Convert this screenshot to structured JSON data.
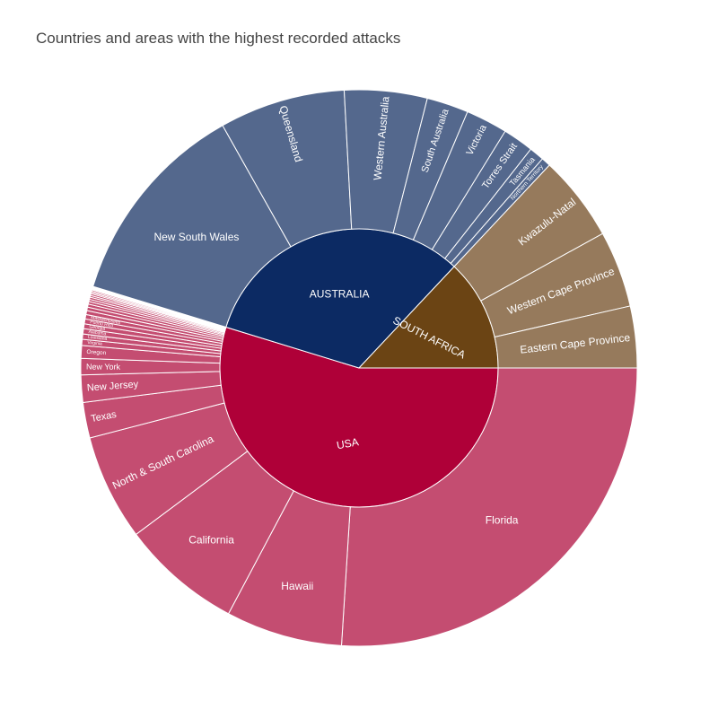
{
  "chart_data": {
    "type": "sunburst",
    "title": "Countries and areas with the highest recorded attacks",
    "colors": {
      "USA": {
        "inner": "#af0038",
        "outer": "#c44d71"
      },
      "AUSTRALIA": {
        "inner": "#0c2a63",
        "outer": "#54688d"
      },
      "SOUTH AFRICA": {
        "inner": "#6b4414",
        "outer": "#967a5c"
      }
    },
    "countries": [
      {
        "name": "USA",
        "areas": [
          {
            "name": "Florida",
            "value": 1018
          },
          {
            "name": "Hawaii",
            "value": 265
          },
          {
            "name": "California",
            "value": 275
          },
          {
            "name": "North & South Carolina",
            "value": 241
          },
          {
            "name": "Texas",
            "value": 81
          },
          {
            "name": "New Jersey",
            "value": 62
          },
          {
            "name": "New York",
            "value": 37
          },
          {
            "name": "Oregon",
            "value": 29
          },
          {
            "name": "Virginia",
            "value": 14
          },
          {
            "name": "Louisiana",
            "value": 12
          },
          {
            "name": "Alabama",
            "value": 12
          },
          {
            "name": "Georgia",
            "value": 11
          },
          {
            "name": "Puerto Rico",
            "value": 11
          },
          {
            "name": "Massachusetts",
            "value": 10
          },
          {
            "name": "",
            "value": 9
          },
          {
            "name": "",
            "value": 8
          },
          {
            "name": "",
            "value": 7
          },
          {
            "name": "",
            "value": 6
          },
          {
            "name": "",
            "value": 5
          },
          {
            "name": "",
            "value": 5
          },
          {
            "name": "",
            "value": 4
          },
          {
            "name": "",
            "value": 4
          },
          {
            "name": "",
            "value": 3
          },
          {
            "name": "",
            "value": 3
          },
          {
            "name": "",
            "value": 3
          },
          {
            "name": "",
            "value": 2
          },
          {
            "name": "",
            "value": 2
          },
          {
            "name": "",
            "value": 2
          },
          {
            "name": "",
            "value": 2
          }
        ]
      },
      {
        "name": "AUSTRALIA",
        "areas": [
          {
            "name": "New South Wales",
            "value": 474
          },
          {
            "name": "Queensland",
            "value": 286
          },
          {
            "name": "Western Australia",
            "value": 188
          },
          {
            "name": "South Australia",
            "value": 95
          },
          {
            "name": "Victoria",
            "value": 95
          },
          {
            "name": "Torres Strait",
            "value": 70
          },
          {
            "name": "Tasmania",
            "value": 34
          },
          {
            "name": "Northern Territory",
            "value": 21
          }
        ]
      },
      {
        "name": "SOUTH AFRICA",
        "areas": [
          {
            "name": "Kwazulu-Natal",
            "value": 195
          },
          {
            "name": "Western Cape Province",
            "value": 174
          },
          {
            "name": "Eastern Cape Province",
            "value": 140
          }
        ]
      }
    ]
  }
}
